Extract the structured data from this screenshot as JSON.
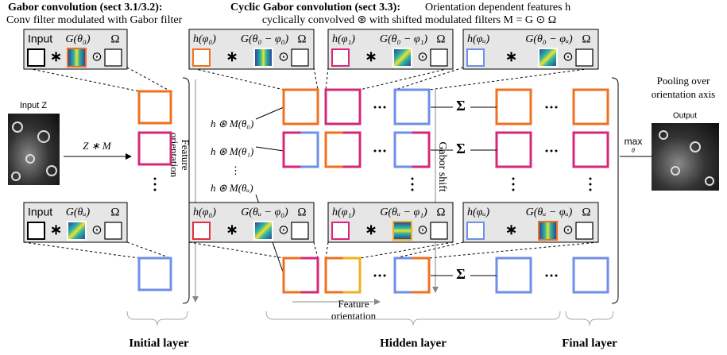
{
  "header": {
    "gabor_title": "Gabor convolution (sect 3.1/3.2):",
    "gabor_subtitle": "Conv filter modulated with Gabor filter",
    "cyclic_title": "Cyclic Gabor convolution (sect 3.3):",
    "cyclic_text": "Orientation dependent features h",
    "cyclic_subtitle": "cyclically convolved ⊛ with shifted modulated filters M = G ⊙ Ω"
  },
  "filter_boxes": [
    {
      "input": "Input",
      "gabor": "G(θ₀)",
      "omega": "Ω",
      "conv": "∗",
      "modulate": "⊙"
    },
    {
      "input": "h(φ₀)",
      "gabor": "G(θ₀ − φ₀)",
      "omega": "Ω",
      "conv": "∗",
      "modulate": "⊙"
    },
    {
      "input": "h(φ₁)",
      "gabor": "G(θ₀ − φ₁)",
      "omega": "Ω",
      "conv": "∗",
      "modulate": "⊙"
    },
    {
      "input": "h(φᵤ)",
      "gabor": "G(θ₀ − φᵤ)",
      "omega": "Ω",
      "conv": "∗",
      "modulate": "⊙"
    },
    {
      "input": "Input",
      "gabor": "G(θᵤ)",
      "omega": "Ω",
      "conv": "∗",
      "modulate": "⊙"
    },
    {
      "input": "h(φ₀)",
      "gabor": "G(θᵤ − φ₀)",
      "omega": "Ω",
      "conv": "∗",
      "modulate": "⊙"
    },
    {
      "input": "h(φ₁)",
      "gabor": "G(θᵤ − φ₁)",
      "omega": "Ω",
      "conv": "∗",
      "modulate": "⊙"
    },
    {
      "input": "h(φᵤ)",
      "gabor": "G(θᵤ − φᵤ)",
      "omega": "Ω",
      "conv": "∗",
      "modulate": "⊙"
    }
  ],
  "input": {
    "label": "Input Z",
    "operation": "Z ∗ M"
  },
  "initial_layer": {
    "axis_label": [
      "Feature",
      "orientation"
    ]
  },
  "hidden_layer": {
    "rows": [
      "h ⊛ M(θ₀)",
      "h ⊛ M(θ₁)",
      "⋮",
      "h ⊛ M(θᵤ)"
    ],
    "shift_label": "Gabor shift",
    "sum": "Σ",
    "axis_label": [
      "Feature",
      "orientation"
    ]
  },
  "output": {
    "pooling": [
      "Pooling over",
      "orientation axis"
    ],
    "operation": "max",
    "operation_sub": "θ",
    "label": "Output"
  },
  "layers": [
    "Initial layer",
    "Hidden layer",
    "Final layer"
  ]
}
